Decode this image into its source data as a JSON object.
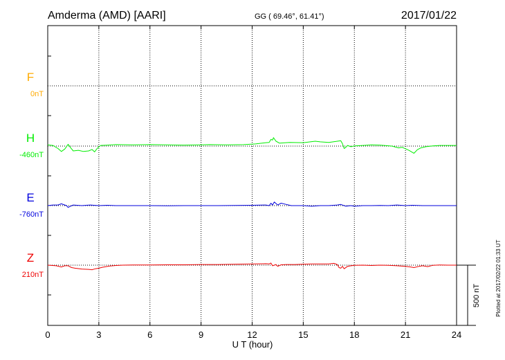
{
  "header": {
    "station": "Amderma (AMD)  [AARI]",
    "coords": "GG ( 69.46°,  61.41°)",
    "date": "2017/01/22"
  },
  "footer": {
    "plotted": "Plotted at 2017/02/22 01:33 UT"
  },
  "chart_data": {
    "type": "line",
    "xlabel": "U T (hour)",
    "xlim": [
      0,
      24
    ],
    "x_ticks": [
      0,
      3,
      6,
      9,
      12,
      15,
      18,
      21,
      24
    ],
    "x_tick_labels": [
      "0",
      "3",
      "6",
      "9",
      "12",
      "15",
      "18",
      "21",
      "24"
    ],
    "grid": true,
    "scale_bar": {
      "label": "500 nT",
      "value_nT": 500
    },
    "series": [
      {
        "name": "F",
        "baseline_label": "0nT",
        "color": "#ffaa00",
        "points": []
      },
      {
        "name": "H",
        "baseline_label": "-460nT",
        "color": "#00ee00",
        "points": [
          [
            0,
            10
          ],
          [
            0.3,
            5
          ],
          [
            0.6,
            -20
          ],
          [
            0.8,
            -45
          ],
          [
            1.0,
            -25
          ],
          [
            1.1,
            -5
          ],
          [
            1.2,
            15
          ],
          [
            1.35,
            -15
          ],
          [
            1.5,
            -40
          ],
          [
            1.8,
            -35
          ],
          [
            2.1,
            -45
          ],
          [
            2.4,
            -40
          ],
          [
            2.6,
            -28
          ],
          [
            2.75,
            -48
          ],
          [
            2.9,
            -20
          ],
          [
            3.1,
            5
          ],
          [
            3.5,
            8
          ],
          [
            4.0,
            12
          ],
          [
            5.0,
            10
          ],
          [
            6.0,
            12
          ],
          [
            7.0,
            10
          ],
          [
            8.0,
            8
          ],
          [
            9.0,
            10
          ],
          [
            9.5,
            12
          ],
          [
            10.5,
            10
          ],
          [
            11.5,
            12
          ],
          [
            12.2,
            18
          ],
          [
            12.8,
            28
          ],
          [
            13.0,
            30
          ],
          [
            13.1,
            55
          ],
          [
            13.2,
            50
          ],
          [
            13.25,
            70
          ],
          [
            13.4,
            40
          ],
          [
            13.6,
            25
          ],
          [
            14.2,
            30
          ],
          [
            15.0,
            28
          ],
          [
            15.7,
            40
          ],
          [
            16.0,
            35
          ],
          [
            16.5,
            30
          ],
          [
            17.0,
            40
          ],
          [
            17.2,
            45
          ],
          [
            17.3,
            20
          ],
          [
            17.4,
            -20
          ],
          [
            17.5,
            -10
          ],
          [
            17.6,
            5
          ],
          [
            17.8,
            -5
          ],
          [
            18.0,
            2
          ],
          [
            18.5,
            5
          ],
          [
            19.0,
            10
          ],
          [
            19.5,
            8
          ],
          [
            20.2,
            0
          ],
          [
            20.6,
            -15
          ],
          [
            20.8,
            -10
          ],
          [
            21.2,
            -35
          ],
          [
            21.5,
            -60
          ],
          [
            21.7,
            -30
          ],
          [
            21.9,
            -15
          ],
          [
            22.2,
            -5
          ],
          [
            22.6,
            2
          ],
          [
            23.0,
            5
          ],
          [
            23.5,
            5
          ],
          [
            24.0,
            5
          ]
        ]
      },
      {
        "name": "E",
        "baseline_label": "-760nT",
        "color": "#0000dd",
        "points": [
          [
            0,
            0
          ],
          [
            0.3,
            5
          ],
          [
            0.6,
            5
          ],
          [
            0.8,
            15
          ],
          [
            1.0,
            5
          ],
          [
            1.1,
            0
          ],
          [
            1.2,
            -15
          ],
          [
            1.5,
            5
          ],
          [
            2.0,
            0
          ],
          [
            2.5,
            5
          ],
          [
            3.0,
            0
          ],
          [
            3.5,
            3
          ],
          [
            4.0,
            0
          ],
          [
            5.0,
            0
          ],
          [
            6.0,
            0
          ],
          [
            7.0,
            -2
          ],
          [
            8.0,
            0
          ],
          [
            9.0,
            0
          ],
          [
            10.0,
            0
          ],
          [
            11.0,
            2
          ],
          [
            12.0,
            3
          ],
          [
            12.8,
            5
          ],
          [
            13.0,
            0
          ],
          [
            13.1,
            20
          ],
          [
            13.2,
            5
          ],
          [
            13.3,
            30
          ],
          [
            13.5,
            5
          ],
          [
            13.7,
            20
          ],
          [
            14.0,
            10
          ],
          [
            14.3,
            0
          ],
          [
            15.0,
            0
          ],
          [
            15.5,
            -5
          ],
          [
            16.0,
            0
          ],
          [
            16.5,
            0
          ],
          [
            17.0,
            5
          ],
          [
            17.2,
            10
          ],
          [
            17.5,
            -5
          ],
          [
            17.8,
            0
          ],
          [
            18.0,
            -5
          ],
          [
            18.5,
            0
          ],
          [
            19.0,
            0
          ],
          [
            19.5,
            2
          ],
          [
            20.0,
            0
          ],
          [
            20.5,
            5
          ],
          [
            21.0,
            0
          ],
          [
            21.4,
            3
          ],
          [
            21.7,
            2
          ],
          [
            22.0,
            0
          ],
          [
            23.0,
            0
          ],
          [
            24.0,
            0
          ]
        ]
      },
      {
        "name": "Z",
        "baseline_label": "210nT",
        "color": "#ee0000",
        "points": [
          [
            0,
            0
          ],
          [
            0.5,
            -5
          ],
          [
            0.8,
            -15
          ],
          [
            1.0,
            -5
          ],
          [
            1.2,
            -5
          ],
          [
            1.4,
            -20
          ],
          [
            1.6,
            -25
          ],
          [
            2.0,
            -32
          ],
          [
            2.4,
            -35
          ],
          [
            2.6,
            -38
          ],
          [
            2.8,
            -30
          ],
          [
            3.0,
            -25
          ],
          [
            3.2,
            -18
          ],
          [
            3.6,
            -8
          ],
          [
            4.0,
            -3
          ],
          [
            4.4,
            0
          ],
          [
            5.0,
            2
          ],
          [
            6.0,
            2
          ],
          [
            7.0,
            3
          ],
          [
            8.0,
            3
          ],
          [
            9.0,
            5
          ],
          [
            10.0,
            5
          ],
          [
            11.0,
            8
          ],
          [
            12.0,
            10
          ],
          [
            12.8,
            12
          ],
          [
            13.0,
            10
          ],
          [
            13.1,
            18
          ],
          [
            13.2,
            -5
          ],
          [
            13.4,
            5
          ],
          [
            13.5,
            -10
          ],
          [
            13.7,
            3
          ],
          [
            14.0,
            5
          ],
          [
            14.5,
            5
          ],
          [
            15.0,
            8
          ],
          [
            15.5,
            10
          ],
          [
            16.0,
            10
          ],
          [
            16.5,
            10
          ],
          [
            16.8,
            15
          ],
          [
            17.0,
            5
          ],
          [
            17.1,
            -20
          ],
          [
            17.2,
            -25
          ],
          [
            17.3,
            -10
          ],
          [
            17.4,
            -30
          ],
          [
            17.6,
            -10
          ],
          [
            17.8,
            -5
          ],
          [
            18.0,
            -2
          ],
          [
            18.5,
            0
          ],
          [
            19.0,
            -3
          ],
          [
            19.5,
            0
          ],
          [
            20.0,
            -2
          ],
          [
            20.5,
            -5
          ],
          [
            21.0,
            -10
          ],
          [
            21.3,
            -15
          ],
          [
            21.5,
            -20
          ],
          [
            21.8,
            -10
          ],
          [
            22.0,
            -5
          ],
          [
            22.3,
            -12
          ],
          [
            22.6,
            -2
          ],
          [
            23.0,
            2
          ],
          [
            23.5,
            0
          ],
          [
            24.0,
            0
          ]
        ]
      }
    ]
  }
}
